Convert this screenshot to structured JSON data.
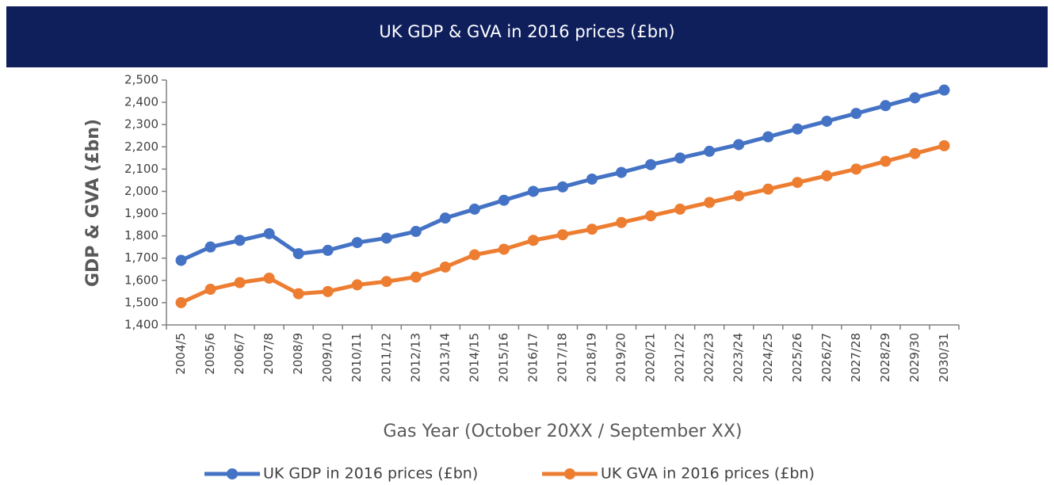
{
  "chart_data": {
    "type": "line",
    "title": "UK GDP & GVA in 2016 prices (£bn)",
    "xlabel": "Gas Year (October 20XX / September XX)",
    "ylabel": "GDP & GVA (£bn)",
    "categories": [
      "2004/5",
      "2005/6",
      "2006/7",
      "2007/8",
      "2008/9",
      "2009/10",
      "2010/11",
      "2011/12",
      "2012/13",
      "2013/14",
      "2014/15",
      "2015/16",
      "2016/17",
      "2017/18",
      "2018/19",
      "2019/20",
      "2020/21",
      "2021/22",
      "2022/23",
      "2023/24",
      "2024/25",
      "2025/26",
      "2026/27",
      "2027/28",
      "2028/29",
      "2029/30",
      "2030/31"
    ],
    "series": [
      {
        "name": "UK GDP in 2016 prices (£bn)",
        "color": "#4472c4",
        "values": [
          1690,
          1750,
          1780,
          1810,
          1720,
          1735,
          1770,
          1790,
          1820,
          1880,
          1920,
          1960,
          2000,
          2020,
          2055,
          2085,
          2120,
          2150,
          2180,
          2210,
          2245,
          2280,
          2315,
          2350,
          2385,
          2420,
          2455
        ]
      },
      {
        "name": "UK GVA in 2016 prices (£bn)",
        "color": "#ed7d31",
        "values": [
          1500,
          1560,
          1590,
          1610,
          1540,
          1550,
          1580,
          1595,
          1615,
          1660,
          1715,
          1740,
          1780,
          1805,
          1830,
          1860,
          1890,
          1920,
          1950,
          1980,
          2010,
          2040,
          2070,
          2100,
          2135,
          2170,
          2205
        ]
      }
    ],
    "ylim": [
      1400,
      2500
    ],
    "yticks": [
      {
        "value": 1400,
        "label": "1,400"
      },
      {
        "value": 1500,
        "label": "1,500"
      },
      {
        "value": 1600,
        "label": "1,600"
      },
      {
        "value": 1700,
        "label": "1,700"
      },
      {
        "value": 1800,
        "label": "1,800"
      },
      {
        "value": 1900,
        "label": "1,900"
      },
      {
        "value": 2000,
        "label": "2,000"
      },
      {
        "value": 2100,
        "label": "2,100"
      },
      {
        "value": 2200,
        "label": "2,200"
      },
      {
        "value": 2300,
        "label": "2,300"
      },
      {
        "value": 2400,
        "label": "2,400"
      },
      {
        "value": 2500,
        "label": "2,500"
      }
    ],
    "grid": false,
    "legend": "bottom"
  }
}
